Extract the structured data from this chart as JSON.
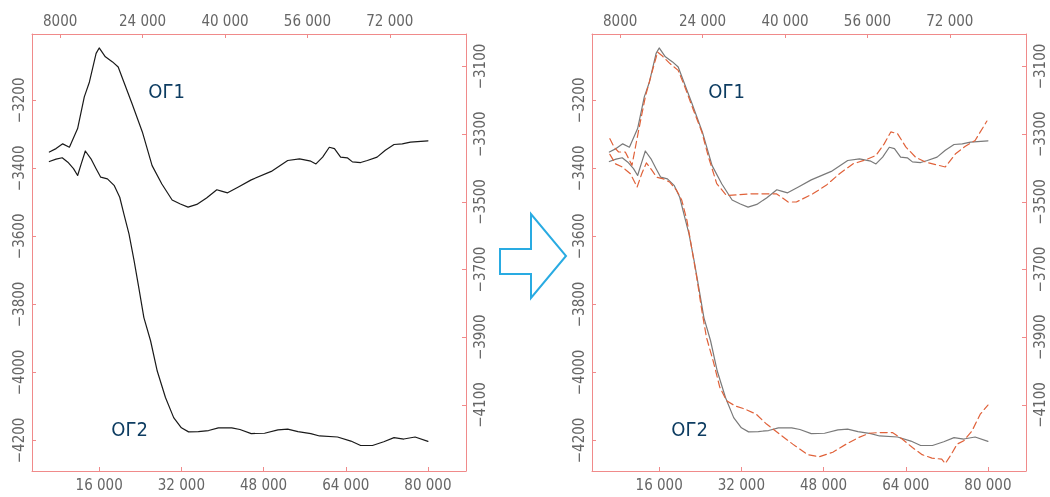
{
  "chart_data": [
    {
      "type": "line",
      "xlim": [
        2919,
        87410
      ],
      "xticks": [
        {
          "value": 16000,
          "label": "16 000"
        },
        {
          "value": 32000,
          "label": "32 000"
        },
        {
          "value": 48000,
          "label": "48 000"
        },
        {
          "value": 64000,
          "label": "64 000"
        },
        {
          "value": 80000,
          "label": "80 000"
        }
      ],
      "x2lim": [
        2538,
        86779
      ],
      "x2ticks": [
        8000,
        {
          "value": 24000,
          "label": "24 000"
        },
        {
          "value": 40000,
          "label": "40 000"
        },
        {
          "value": 56000,
          "label": "56 000"
        },
        {
          "value": 72000,
          "label": "72 000"
        }
      ],
      "ylim": [
        -4290,
        -3005
      ],
      "yticks": [
        {
          "value": -4200,
          "label": "−4200"
        },
        {
          "value": -4000,
          "label": "−4000"
        },
        {
          "value": -3800,
          "label": "−3800"
        },
        {
          "value": -3600,
          "label": "−3600"
        },
        {
          "value": -3400,
          "label": "−3400"
        },
        {
          "value": -3200,
          "label": "−3200"
        }
      ],
      "y2lim": [
        -4295,
        -3004
      ],
      "y2ticks": [
        {
          "value": -4100,
          "label": "−4100"
        },
        {
          "value": -3900,
          "label": "−3900"
        },
        {
          "value": -3700,
          "label": "−3700"
        },
        {
          "value": -3500,
          "label": "−3500"
        },
        {
          "value": -3300,
          "label": "−3300"
        },
        {
          "value": -3100,
          "label": "−3100"
        }
      ],
      "grid": false,
      "marker": "none",
      "annotations": [
        "ОГ1",
        "ОГ2"
      ],
      "series": [
        {
          "color": "#1a1a1a",
          "line_style": "solid",
          "x": [
            6300,
            7600,
            8900,
            10200,
            11800,
            13100,
            14100,
            15400,
            16000,
            17200,
            18600,
            19700,
            20800,
            22400,
            24400,
            26300,
            28200,
            30200,
            31800,
            33300,
            35000,
            36900,
            38900,
            39800,
            41000,
            43100,
            45600,
            49500,
            52700,
            55000,
            57200,
            58200,
            59500,
            60800,
            61800,
            63000,
            64300,
            65300,
            66900,
            68200,
            70100,
            71700,
            73400,
            75000,
            76600,
            80000
          ],
          "values": [
            -3352,
            -3342,
            -3328,
            -3338,
            -3283,
            -3190,
            -3146,
            -3062,
            -3046,
            -3072,
            -3087,
            -3102,
            -3146,
            -3210,
            -3293,
            -3392,
            -3446,
            -3493,
            -3505,
            -3514,
            -3506,
            -3487,
            -3463,
            -3467,
            -3472,
            -3455,
            -3434,
            -3409,
            -3377,
            -3372,
            -3379,
            -3387,
            -3367,
            -3338,
            -3342,
            -3367,
            -3369,
            -3381,
            -3383,
            -3377,
            -3367,
            -3347,
            -3330,
            -3328,
            -3323,
            -3319
          ]
        },
        {
          "color": "#1a1a1a",
          "line_style": "solid",
          "x": [
            6300,
            7600,
            8800,
            9900,
            11000,
            11800,
            12500,
            13300,
            14400,
            15400,
            16300,
            17600,
            18900,
            20000,
            20800,
            21800,
            22800,
            23700,
            24700,
            26000,
            27300,
            28900,
            30500,
            32000,
            33400,
            35300,
            37300,
            39200,
            41800,
            43400,
            45600,
            48200,
            50800,
            52700,
            54700,
            57200,
            58900,
            62400,
            65000,
            66900,
            69200,
            71400,
            73400,
            75300,
            77500,
            80000
          ],
          "values": [
            -3380,
            -3373,
            -3369,
            -3382,
            -3401,
            -3421,
            -3387,
            -3349,
            -3372,
            -3401,
            -3426,
            -3431,
            -3450,
            -3485,
            -3534,
            -3593,
            -3672,
            -3750,
            -3839,
            -3907,
            -3996,
            -4074,
            -4133,
            -4163,
            -4175,
            -4174,
            -4171,
            -4163,
            -4163,
            -4168,
            -4180,
            -4179,
            -4169,
            -4167,
            -4174,
            -4180,
            -4187,
            -4190,
            -4202,
            -4215,
            -4215,
            -4204,
            -4192,
            -4196,
            -4190,
            -4203
          ]
        }
      ]
    },
    {
      "type": "line",
      "xlim": [
        2919,
        87410
      ],
      "xticks": [
        {
          "value": 16000,
          "label": "16 000"
        },
        {
          "value": 32000,
          "label": "32 000"
        },
        {
          "value": 48000,
          "label": "48 000"
        },
        {
          "value": 64000,
          "label": "64 000"
        },
        {
          "value": 80000,
          "label": "80 000"
        }
      ],
      "x2lim": [
        2538,
        86779
      ],
      "x2ticks": [
        8000,
        {
          "value": 24000,
          "label": "24 000"
        },
        {
          "value": 40000,
          "label": "40 000"
        },
        {
          "value": 56000,
          "label": "56 000"
        },
        {
          "value": 72000,
          "label": "72 000"
        }
      ],
      "ylim": [
        -4290,
        -3005
      ],
      "yticks": [
        {
          "value": -4200,
          "label": "−4200"
        },
        {
          "value": -4000,
          "label": "−4000"
        },
        {
          "value": -3800,
          "label": "−3800"
        },
        {
          "value": -3600,
          "label": "−3600"
        },
        {
          "value": -3400,
          "label": "−3400"
        },
        {
          "value": -3200,
          "label": "−3200"
        }
      ],
      "y2lim": [
        -4295,
        -3004
      ],
      "y2ticks": [
        {
          "value": -4100,
          "label": "−4100"
        },
        {
          "value": -3900,
          "label": "−3900"
        },
        {
          "value": -3700,
          "label": "−3700"
        },
        {
          "value": -3500,
          "label": "−3500"
        },
        {
          "value": -3300,
          "label": "−3300"
        },
        {
          "value": -3100,
          "label": "−3100"
        }
      ],
      "grid": false,
      "marker": "none",
      "annotations": [
        "ОГ1",
        "ОГ2"
      ],
      "series": [
        {
          "color": "#7a7a7a",
          "line_style": "solid",
          "x": [
            6300,
            7600,
            8900,
            10200,
            11800,
            13100,
            14100,
            15400,
            16000,
            17200,
            18600,
            19700,
            20800,
            22400,
            24400,
            26300,
            28200,
            30200,
            31800,
            33300,
            35000,
            36900,
            38900,
            39800,
            41000,
            43100,
            45600,
            49500,
            52700,
            55000,
            57200,
            58200,
            59500,
            60800,
            61800,
            63000,
            64300,
            65300,
            66900,
            68200,
            70100,
            71700,
            73400,
            75000,
            76600,
            80000
          ],
          "values": [
            -3352,
            -3342,
            -3328,
            -3338,
            -3283,
            -3190,
            -3146,
            -3062,
            -3046,
            -3072,
            -3087,
            -3102,
            -3146,
            -3210,
            -3293,
            -3392,
            -3446,
            -3493,
            -3505,
            -3514,
            -3506,
            -3487,
            -3463,
            -3467,
            -3472,
            -3455,
            -3434,
            -3409,
            -3377,
            -3372,
            -3379,
            -3387,
            -3367,
            -3338,
            -3342,
            -3367,
            -3369,
            -3381,
            -3383,
            -3377,
            -3367,
            -3347,
            -3330,
            -3328,
            -3323,
            -3319
          ]
        },
        {
          "color": "#7a7a7a",
          "line_style": "solid",
          "x": [
            6300,
            7600,
            8800,
            9900,
            11000,
            11800,
            12500,
            13300,
            14400,
            15400,
            16300,
            17600,
            18900,
            20000,
            20800,
            21800,
            22800,
            23700,
            24700,
            26000,
            27300,
            28900,
            30500,
            32000,
            33400,
            35300,
            37300,
            39200,
            41800,
            43400,
            45600,
            48200,
            50800,
            52700,
            54700,
            57200,
            58900,
            62400,
            65000,
            66900,
            69200,
            71400,
            73400,
            75300,
            77500,
            80000
          ],
          "values": [
            -3380,
            -3373,
            -3369,
            -3382,
            -3401,
            -3421,
            -3387,
            -3349,
            -3372,
            -3401,
            -3426,
            -3431,
            -3450,
            -3485,
            -3534,
            -3593,
            -3672,
            -3750,
            -3839,
            -3907,
            -3996,
            -4074,
            -4133,
            -4163,
            -4175,
            -4174,
            -4171,
            -4163,
            -4163,
            -4168,
            -4180,
            -4179,
            -4169,
            -4167,
            -4174,
            -4180,
            -4187,
            -4190,
            -4202,
            -4215,
            -4215,
            -4204,
            -4192,
            -4196,
            -4190,
            -4203
          ]
        },
        {
          "color": "#e0623a",
          "line_style": "dashed",
          "x": [
            6400,
            7200,
            8100,
            9400,
            10700,
            12000,
            13300,
            14600,
            15700,
            16500,
            18100,
            19700,
            21000,
            22700,
            24300,
            25600,
            27200,
            29100,
            31000,
            33600,
            36200,
            38800,
            39800,
            41100,
            42700,
            45900,
            48500,
            51100,
            53700,
            56200,
            58200,
            59800,
            61100,
            62400,
            64000,
            65900,
            67900,
            69800,
            71700,
            73700,
            75600,
            77500,
            79800
          ],
          "values": [
            -3313,
            -3337,
            -3352,
            -3352,
            -3391,
            -3288,
            -3190,
            -3117,
            -3058,
            -3068,
            -3092,
            -3112,
            -3161,
            -3230,
            -3293,
            -3367,
            -3445,
            -3480,
            -3478,
            -3475,
            -3475,
            -3475,
            -3485,
            -3499,
            -3499,
            -3475,
            -3450,
            -3416,
            -3387,
            -3375,
            -3362,
            -3328,
            -3293,
            -3298,
            -3337,
            -3367,
            -3382,
            -3389,
            -3396,
            -3357,
            -3335,
            -3318,
            -3261
          ]
        },
        {
          "color": "#e0623a",
          "line_style": "dashed",
          "x": [
            6400,
            7500,
            8800,
            10400,
            11700,
            12600,
            13500,
            14600,
            15500,
            16800,
            18100,
            19400,
            20400,
            21400,
            22300,
            23300,
            24300,
            25200,
            26500,
            27800,
            29100,
            30700,
            32700,
            34900,
            36900,
            39400,
            42000,
            44900,
            47200,
            49800,
            52400,
            54900,
            56900,
            58800,
            61400,
            63300,
            65300,
            67200,
            69100,
            71000,
            71700,
            72700,
            74000,
            75300,
            76900,
            78500,
            80000
          ],
          "values": [
            -3359,
            -3387,
            -3396,
            -3416,
            -3455,
            -3416,
            -3384,
            -3406,
            -3426,
            -3431,
            -3441,
            -3465,
            -3494,
            -3553,
            -3632,
            -3720,
            -3818,
            -3897,
            -3966,
            -4044,
            -4083,
            -4098,
            -4108,
            -4123,
            -4152,
            -4181,
            -4211,
            -4242,
            -4248,
            -4235,
            -4211,
            -4191,
            -4179,
            -4177,
            -4177,
            -4196,
            -4221,
            -4242,
            -4252,
            -4255,
            -4268,
            -4245,
            -4211,
            -4201,
            -4172,
            -4123,
            -4096
          ]
        }
      ]
    }
  ]
}
